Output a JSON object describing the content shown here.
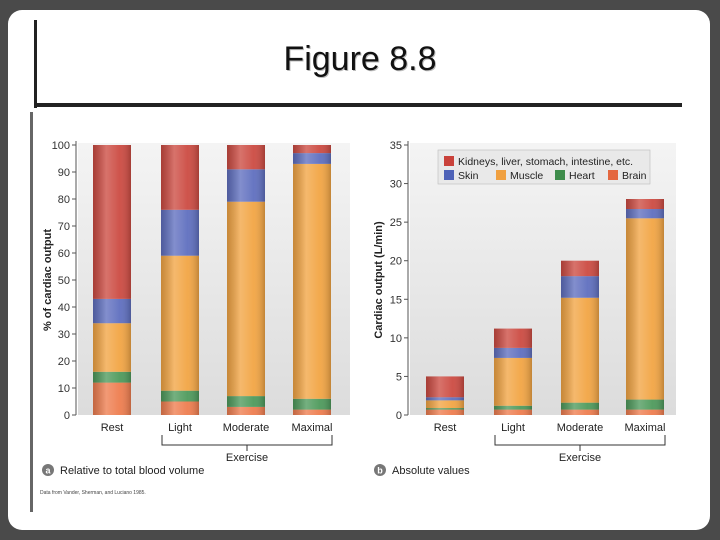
{
  "slide": {
    "title": "Figure 8.8"
  },
  "chart_data": [
    {
      "type": "bar",
      "stacked": true,
      "panel_letter": "a",
      "panel_caption": "Relative to total blood volume",
      "categories": [
        "Rest",
        "Light",
        "Moderate",
        "Maximal"
      ],
      "group_label": "Exercise",
      "ylabel": "% of cardiac output",
      "ylim": [
        0,
        100
      ],
      "yticks": [
        0,
        10,
        20,
        30,
        40,
        50,
        60,
        70,
        80,
        90,
        100
      ],
      "series": [
        {
          "name": "Brain",
          "values": [
            12,
            5,
            3,
            2
          ]
        },
        {
          "name": "Heart",
          "values": [
            4,
            4,
            4,
            4
          ]
        },
        {
          "name": "Muscle",
          "values": [
            18,
            50,
            72,
            87
          ]
        },
        {
          "name": "Skin",
          "values": [
            9,
            17,
            12,
            4
          ]
        },
        {
          "name": "Kidneys, liver, stomach, intestine, etc.",
          "values": [
            57,
            24,
            9,
            3
          ]
        }
      ],
      "source_note": "Data from Vander, Sherman, and Luciano 1985."
    },
    {
      "type": "bar",
      "stacked": true,
      "panel_letter": "b",
      "panel_caption": "Absolute values",
      "categories": [
        "Rest",
        "Light",
        "Moderate",
        "Maximal"
      ],
      "group_label": "Exercise",
      "ylabel": "Cardiac output (L/min)",
      "ylim": [
        0,
        35
      ],
      "yticks": [
        0,
        5,
        10,
        15,
        20,
        25,
        30,
        35
      ],
      "legend": {
        "position": "top",
        "entries": [
          "Kidneys, liver, stomach, intestine, etc.",
          "Skin",
          "Muscle",
          "Heart",
          "Brain"
        ]
      },
      "series": [
        {
          "name": "Brain",
          "values": [
            0.7,
            0.7,
            0.7,
            0.7
          ]
        },
        {
          "name": "Heart",
          "values": [
            0.2,
            0.5,
            0.9,
            1.3
          ]
        },
        {
          "name": "Muscle",
          "values": [
            1.0,
            6.2,
            13.6,
            23.5
          ]
        },
        {
          "name": "Skin",
          "values": [
            0.4,
            1.3,
            2.8,
            1.2
          ]
        },
        {
          "name": "Kidneys, liver, stomach, intestine, etc.",
          "values": [
            2.7,
            2.5,
            2.0,
            1.3
          ]
        }
      ]
    }
  ],
  "colors": {
    "Brain": "#ee7d4f",
    "Heart": "#4e9a5c",
    "Muscle": "#f2a544",
    "Skin": "#5f6fbf",
    "Kidneys, liver, stomach, intestine, etc.": "#cc4b42"
  },
  "legend_swatch_colors": {
    "Brain": "#e4673f",
    "Heart": "#3f8d4c",
    "Muscle": "#f0a040",
    "Skin": "#4f63b8",
    "Kidneys, liver, stomach, intestine, etc.": "#c9413a"
  }
}
